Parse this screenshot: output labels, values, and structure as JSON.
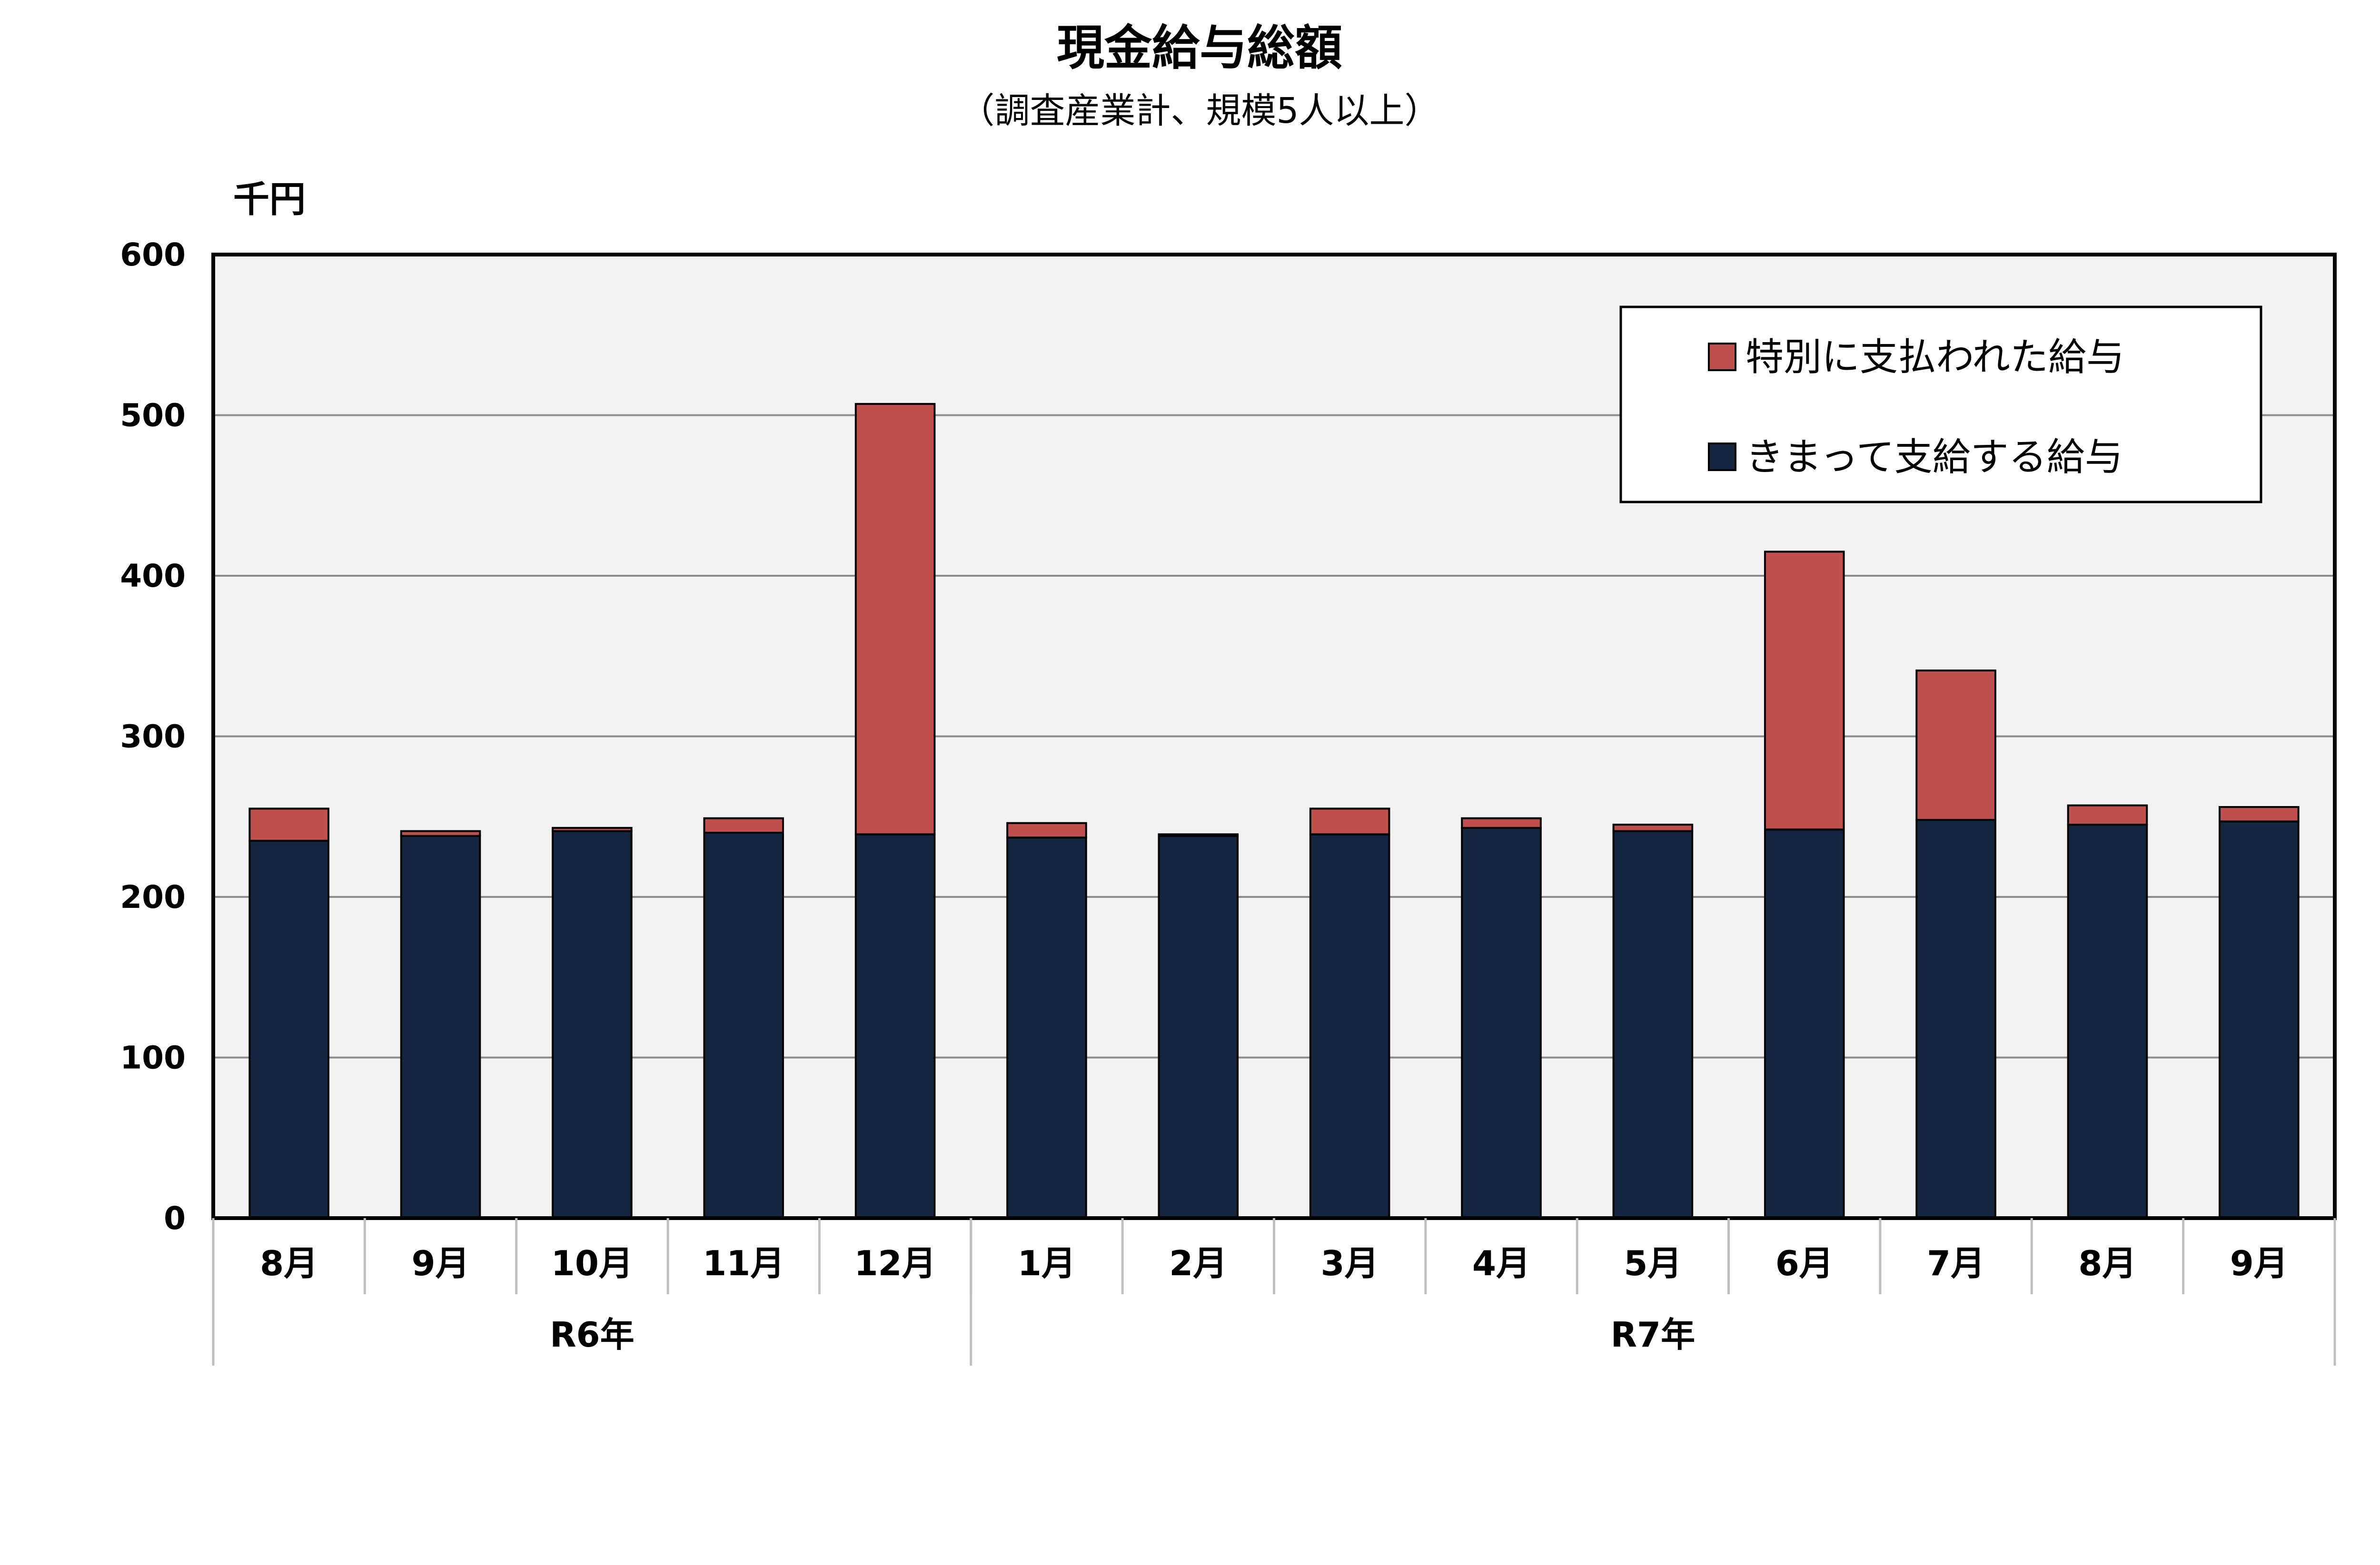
{
  "chart_data": {
    "type": "bar",
    "stacked": true,
    "title": "現金給与総額",
    "subtitle": "（調査産業計、規模5人以上）",
    "yunit": "千円",
    "ylim": [
      0,
      600
    ],
    "yticks": [
      0,
      100,
      200,
      300,
      400,
      500,
      600
    ],
    "grid": true,
    "legend_position": "top-right",
    "categories": [
      "8月",
      "9月",
      "10月",
      "11月",
      "12月",
      "1月",
      "2月",
      "3月",
      "4月",
      "5月",
      "6月",
      "7月",
      "8月",
      "9月"
    ],
    "groups": [
      {
        "label": "R6年",
        "start": 0,
        "end": 4
      },
      {
        "label": "R7年",
        "start": 5,
        "end": 13
      }
    ],
    "series": [
      {
        "name": "きまって支給する給与",
        "color": "#13253F",
        "values": [
          235,
          238,
          241,
          240,
          239,
          237,
          238,
          239,
          243,
          241,
          242,
          248,
          245,
          247
        ]
      },
      {
        "name": "特別に支払われた給与",
        "color": "#C0504D",
        "values": [
          20,
          3,
          2,
          9,
          268,
          9,
          1,
          16,
          6,
          4,
          173,
          93,
          12,
          9
        ]
      }
    ],
    "legend_order": [
      1,
      0
    ]
  }
}
